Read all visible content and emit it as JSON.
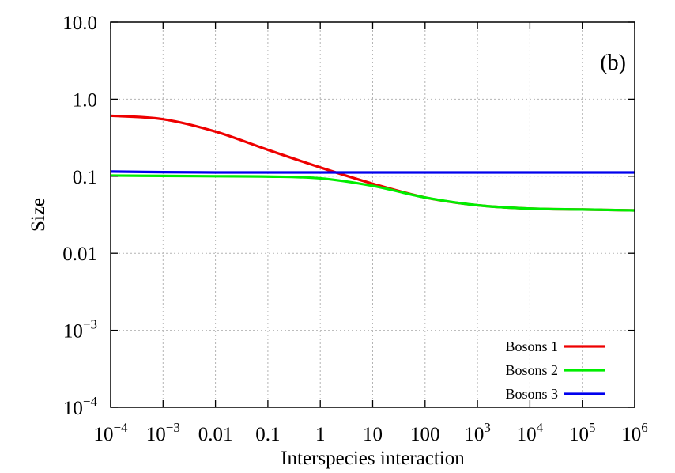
{
  "chart_data": {
    "type": "line",
    "title": "",
    "panel_label": "(b)",
    "xlabel": "Interspecies interaction",
    "ylabel": "Size",
    "x_scale": "log",
    "y_scale": "log",
    "xlim": [
      0.0001,
      1000000
    ],
    "ylim": [
      0.0001,
      10
    ],
    "grid": true,
    "legend_position": "bottom-right",
    "x_ticks": [
      {
        "value": 0.0001,
        "base": "10",
        "exp": "−4"
      },
      {
        "value": 0.001,
        "base": "10",
        "exp": "−3"
      },
      {
        "value": 0.01,
        "base": "0.01",
        "exp": ""
      },
      {
        "value": 0.1,
        "base": "0.1",
        "exp": ""
      },
      {
        "value": 1,
        "base": "1",
        "exp": ""
      },
      {
        "value": 10,
        "base": "10",
        "exp": ""
      },
      {
        "value": 100,
        "base": "100",
        "exp": ""
      },
      {
        "value": 1000,
        "base": "10",
        "exp": "3"
      },
      {
        "value": 10000,
        "base": "10",
        "exp": "4"
      },
      {
        "value": 100000,
        "base": "10",
        "exp": "5"
      },
      {
        "value": 1000000,
        "base": "10",
        "exp": "6"
      }
    ],
    "y_ticks": [
      {
        "value": 10,
        "base": "10.0",
        "exp": ""
      },
      {
        "value": 1,
        "base": "1.0",
        "exp": ""
      },
      {
        "value": 0.1,
        "base": "0.1",
        "exp": ""
      },
      {
        "value": 0.01,
        "base": "0.01",
        "exp": ""
      },
      {
        "value": 0.001,
        "base": "10",
        "exp": "−3"
      },
      {
        "value": 0.0001,
        "base": "10",
        "exp": "−4"
      }
    ],
    "x": [
      0.0001,
      0.001,
      0.01,
      0.1,
      1,
      10,
      100,
      1000,
      10000,
      100000,
      1000000
    ],
    "series": [
      {
        "name": "Bosons 1",
        "color": "#ee0000",
        "values": [
          0.61,
          0.55,
          0.38,
          0.22,
          0.13,
          0.08,
          0.053,
          0.042,
          0.038,
          0.037,
          0.036
        ]
      },
      {
        "name": "Bosons 2",
        "color": "#00ee00",
        "values": [
          0.102,
          0.101,
          0.1,
          0.099,
          0.094,
          0.075,
          0.053,
          0.042,
          0.038,
          0.037,
          0.036
        ]
      },
      {
        "name": "Bosons 3",
        "color": "#0000ee",
        "values": [
          0.115,
          0.113,
          0.112,
          0.112,
          0.112,
          0.112,
          0.112,
          0.112,
          0.112,
          0.112,
          0.112
        ]
      }
    ]
  }
}
